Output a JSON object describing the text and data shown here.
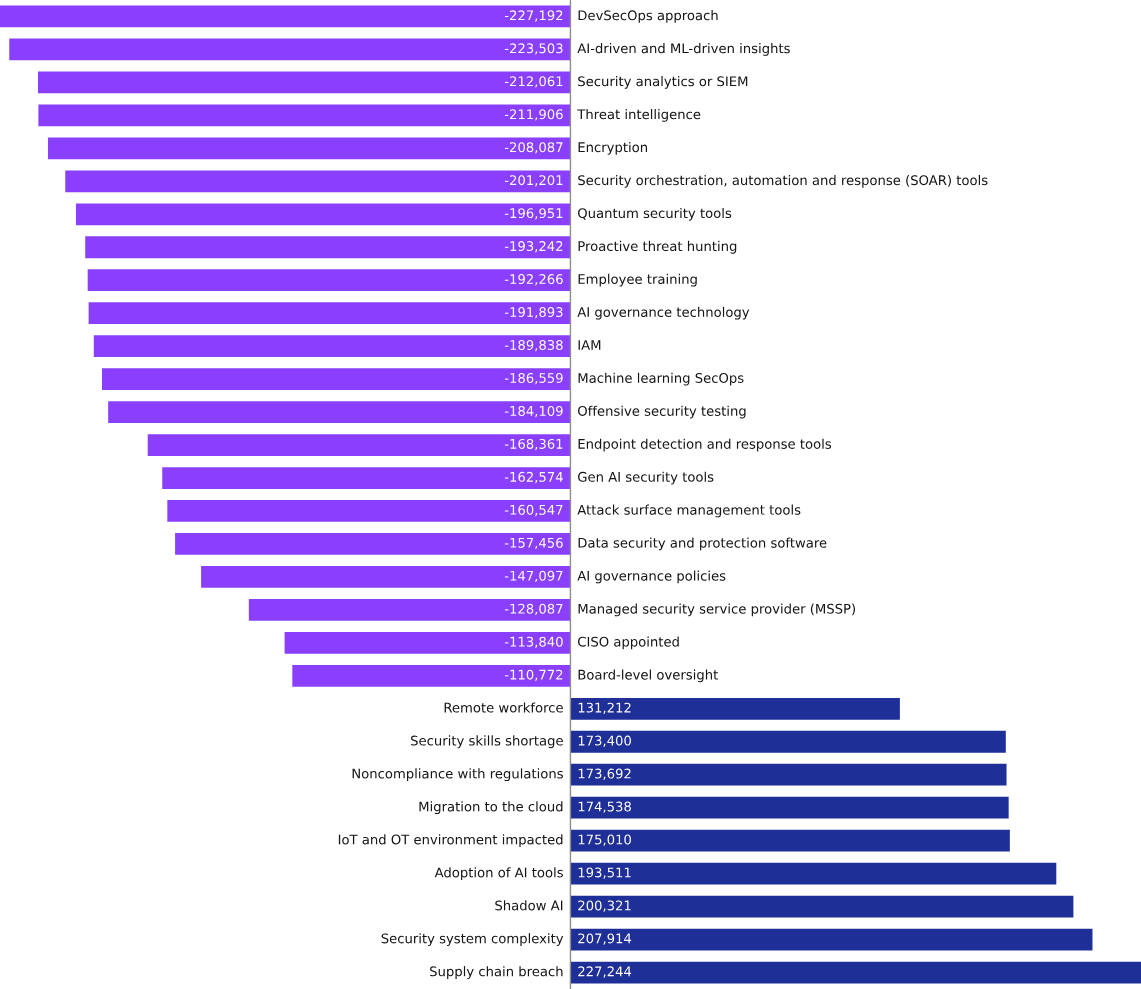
{
  "chart_data": {
    "type": "bar",
    "orientation": "horizontal",
    "value_labels": [
      "-227,192",
      "-223,503",
      "-212,061",
      "-211,906",
      "-208,087",
      "-201,201",
      "-196,951",
      "-193,242",
      "-192,266",
      "-191,893",
      "-189,838",
      "-186,559",
      "-184,109",
      "-168,361",
      "-162,574",
      "-160,547",
      "-157,456",
      "-147,097",
      "-128,087",
      "-113,840",
      "-110,772",
      "131,212",
      "173,400",
      "173,692",
      "174,538",
      "175,010",
      "193,511",
      "200,321",
      "207,914",
      "227,244"
    ],
    "categories": [
      "DevSecOps approach",
      "AI-driven and ML-driven insights",
      "Security analytics or SIEM",
      "Threat intelligence",
      "Encryption",
      "Security orchestration, automation and response (SOAR) tools",
      "Quantum security tools",
      "Proactive threat hunting",
      "Employee training",
      "AI governance technology",
      "IAM",
      "Machine learning SecOps",
      "Offensive security testing",
      "Endpoint detection and response tools",
      "Gen AI security tools",
      "Attack surface management tools",
      "Data security and protection software",
      "AI governance policies",
      "Managed security service provider (MSSP)",
      "CISO appointed",
      "Board-level oversight",
      "Remote workforce",
      "Security skills shortage",
      "Noncompliance with regulations",
      "Migration to the cloud",
      "IoT and OT environment impacted",
      "Adoption of AI tools",
      "Shadow AI",
      "Security system complexity",
      "Supply chain breach"
    ],
    "values": [
      -227192,
      -223503,
      -212061,
      -211906,
      -208087,
      -201201,
      -196951,
      -193242,
      -192266,
      -191893,
      -189838,
      -186559,
      -184109,
      -168361,
      -162574,
      -160547,
      -157456,
      -147097,
      -128087,
      -113840,
      -110772,
      131212,
      173400,
      173692,
      174538,
      175010,
      193511,
      200321,
      207914,
      227244
    ],
    "colors": [
      "#8a3ffc",
      "#8a3ffc",
      "#8a3ffc",
      "#8a3ffc",
      "#8a3ffc",
      "#8a3ffc",
      "#8a3ffc",
      "#8a3ffc",
      "#8a3ffc",
      "#8a3ffc",
      "#8a3ffc",
      "#8a3ffc",
      "#8a3ffc",
      "#8a3ffc",
      "#8a3ffc",
      "#8a3ffc",
      "#8a3ffc",
      "#8a3ffc",
      "#8a3ffc",
      "#8a3ffc",
      "#8a3ffc",
      "#1f2f98",
      "#1f2f98",
      "#1f2f98",
      "#1f2f98",
      "#1f2f98",
      "#1f2f98",
      "#1f2f98",
      "#1f2f98",
      "#1f2f98"
    ]
  }
}
